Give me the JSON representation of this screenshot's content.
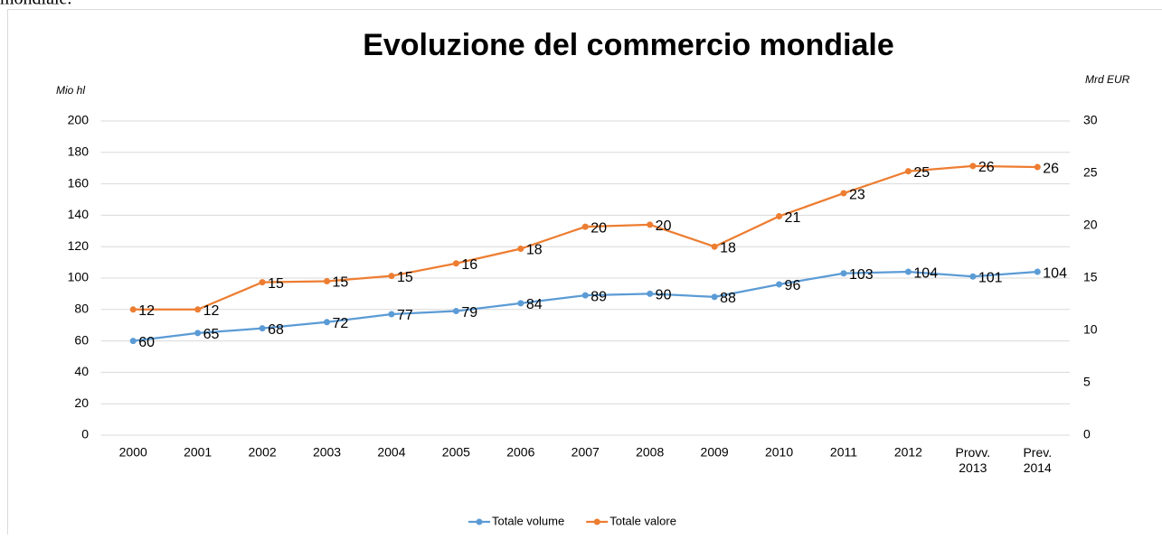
{
  "caption": "mondiale.",
  "chart_data": {
    "type": "line",
    "title": "Evoluzione del commercio mondiale",
    "ylabel": "Mio hl",
    "y2label": "Mrd EUR",
    "categories": [
      "2000",
      "2001",
      "2002",
      "2003",
      "2004",
      "2005",
      "2006",
      "2007",
      "2008",
      "2009",
      "2010",
      "2011",
      "2012",
      "Provv. 2013",
      "Prev. 2014"
    ],
    "ylim": [
      0,
      200
    ],
    "yticks": [
      0,
      20,
      40,
      60,
      80,
      100,
      120,
      140,
      160,
      180,
      200
    ],
    "y2lim": [
      0,
      30
    ],
    "y2ticks": [
      0,
      5,
      10,
      15,
      20,
      25,
      30
    ],
    "grid": true,
    "legend": "bottom",
    "series": [
      {
        "name": "Totale volume",
        "color": "#5b9bd5",
        "values": [
          60,
          65,
          68,
          72,
          77,
          79,
          84,
          89,
          90,
          88,
          96,
          103,
          104,
          101,
          104
        ]
      },
      {
        "name": "Totale valore",
        "color": "#ed7d31",
        "axis": "y2",
        "values": [
          12,
          12,
          14.6,
          14.7,
          15.2,
          16.4,
          17.8,
          19.9,
          20.1,
          18,
          20.9,
          23.1,
          25.2,
          25.7,
          25.6
        ],
        "value_labels": [
          "12",
          "12",
          "15",
          "15",
          "15",
          "16",
          "18",
          "20",
          "20",
          "18",
          "21",
          "23",
          "25",
          "26",
          "26"
        ]
      }
    ]
  }
}
